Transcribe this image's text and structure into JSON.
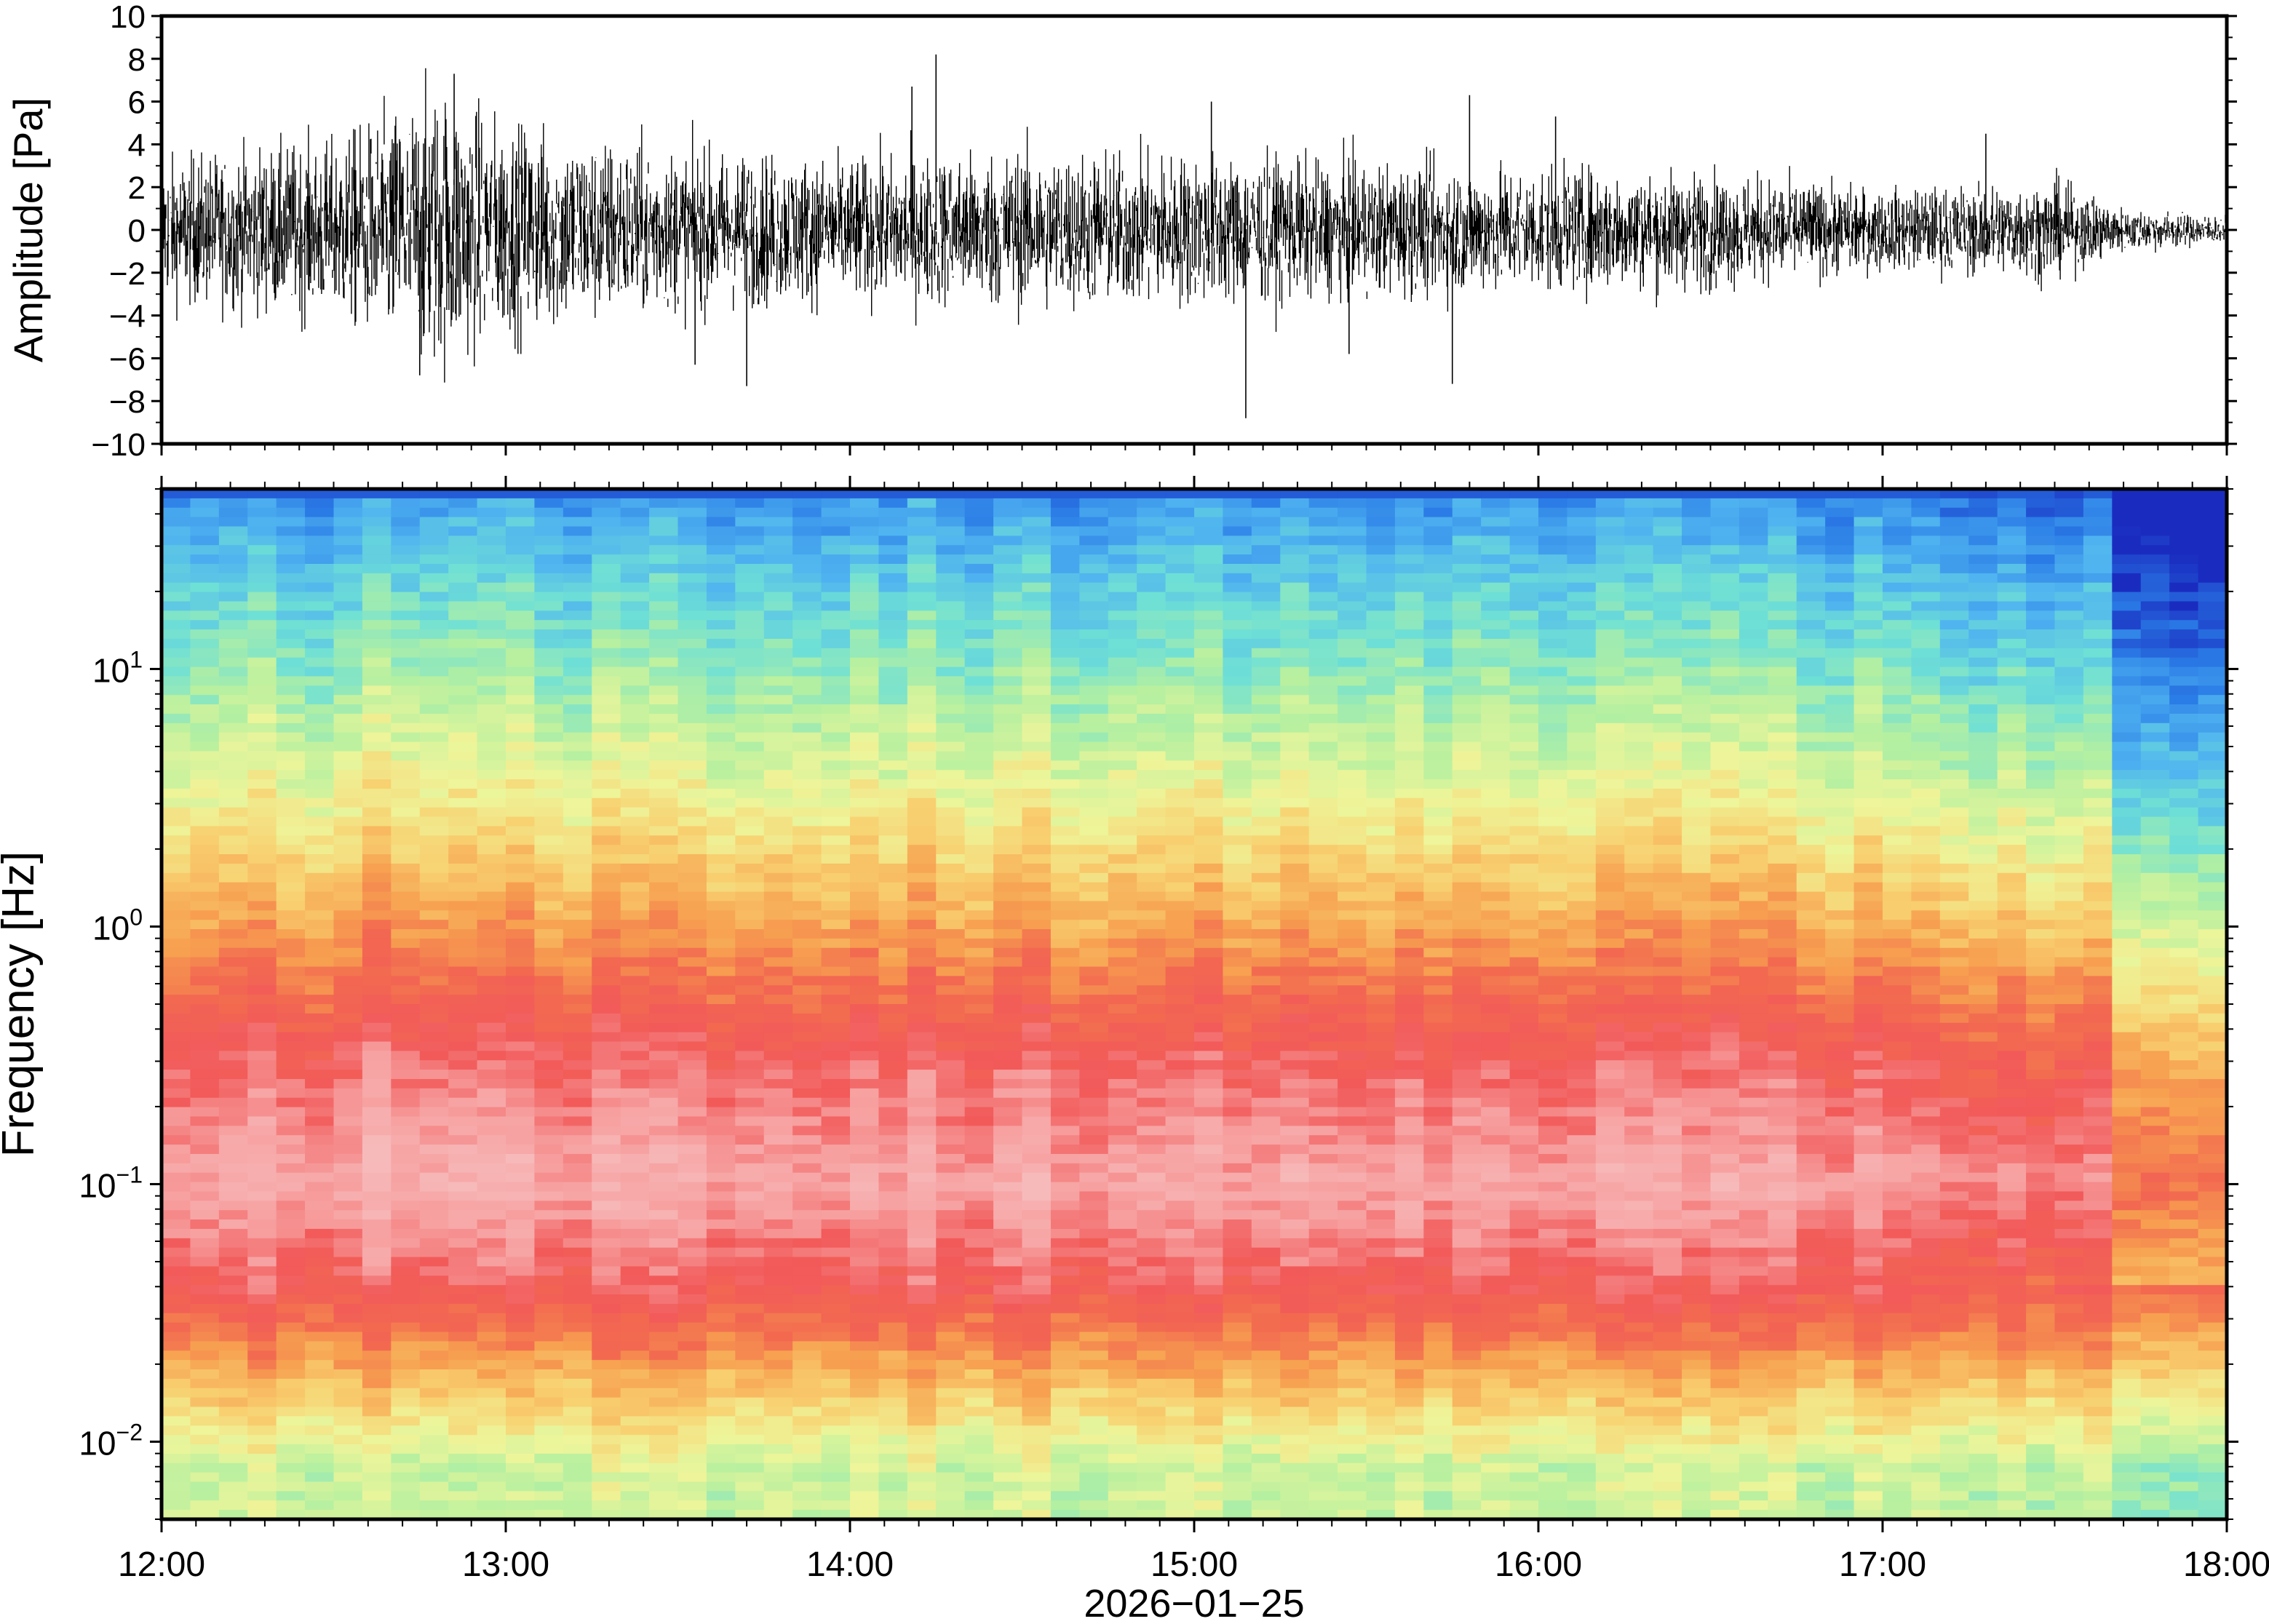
{
  "chart_data": [
    {
      "type": "line",
      "panel": "waveform",
      "title": "",
      "xlabel": "",
      "ylabel": "Amplitude [Pa]",
      "ylim": [
        -10,
        10
      ],
      "yticks": [
        10,
        8,
        6,
        4,
        2,
        0,
        -2,
        -4,
        -6,
        -8,
        -10
      ],
      "ytick_labels": [
        "10",
        "8",
        "6",
        "4",
        "2",
        "0",
        "−2",
        "−4",
        "−6",
        "−8",
        "−10"
      ],
      "x_range": [
        "12:00",
        "18:00"
      ],
      "grid": false,
      "series": [
        {
          "color": "#000000",
          "envelope_hours": [
            12.0,
            12.5,
            12.8,
            13.0,
            13.5,
            14.0,
            14.5,
            15.0,
            15.5,
            16.0,
            16.5,
            17.0,
            17.5,
            17.7,
            18.0
          ],
          "envelope_amplitude": [
            1.6,
            2.0,
            3.2,
            2.4,
            1.8,
            1.6,
            1.8,
            1.7,
            1.5,
            1.4,
            1.3,
            0.9,
            1.1,
            0.5,
            0.3
          ],
          "spikes_hours": [
            12.75,
            12.85,
            13.55,
            13.7,
            14.18,
            14.25,
            15.05,
            15.15,
            15.45,
            15.75,
            15.8,
            16.05,
            17.3,
            17.5
          ],
          "spikes_amplitude": [
            -6.8,
            7.3,
            -6.3,
            -7.3,
            6.7,
            8.2,
            6.0,
            -8.8,
            -5.8,
            -7.2,
            6.3,
            5.3,
            4.5,
            2.2
          ]
        }
      ]
    },
    {
      "type": "heatmap",
      "panel": "spectrogram",
      "title": "",
      "xlabel": "2026−01−25",
      "ylabel": "Frequency [Hz]",
      "yscale": "log",
      "ylim": [
        0.005,
        50
      ],
      "yticks": [
        0.01,
        0.1,
        1,
        10
      ],
      "ytick_labels": [
        {
          "base": "10",
          "exp": "−2"
        },
        {
          "base": "10",
          "exp": "−1"
        },
        {
          "base": "10",
          "exp": "0"
        },
        {
          "base": "10",
          "exp": "1"
        }
      ],
      "x_categories": [
        "12:00",
        "13:00",
        "14:00",
        "15:00",
        "16:00",
        "17:00",
        "18:00"
      ],
      "x_range": [
        "12:00",
        "18:00"
      ],
      "colormap": [
        "#1a2cc0",
        "#2a7be6",
        "#4fb3f0",
        "#6fe0d5",
        "#b6f0a0",
        "#eef59a",
        "#f8d070",
        "#f7a050",
        "#f26950",
        "#f25a5a",
        "#f7a0a0",
        "#f7baba"
      ],
      "grid": false,
      "spectral_level_note": "power increases toward low frequency; quieter after 17:42",
      "level_profile_freq_hz": [
        50,
        20,
        10,
        3,
        1,
        0.3,
        0.1,
        0.04,
        0.02,
        0.008
      ],
      "level_profile_0_to_11": [
        1.5,
        2.8,
        3.6,
        5.2,
        7.0,
        9.2,
        10.4,
        9.0,
        7.0,
        4.5
      ]
    }
  ]
}
